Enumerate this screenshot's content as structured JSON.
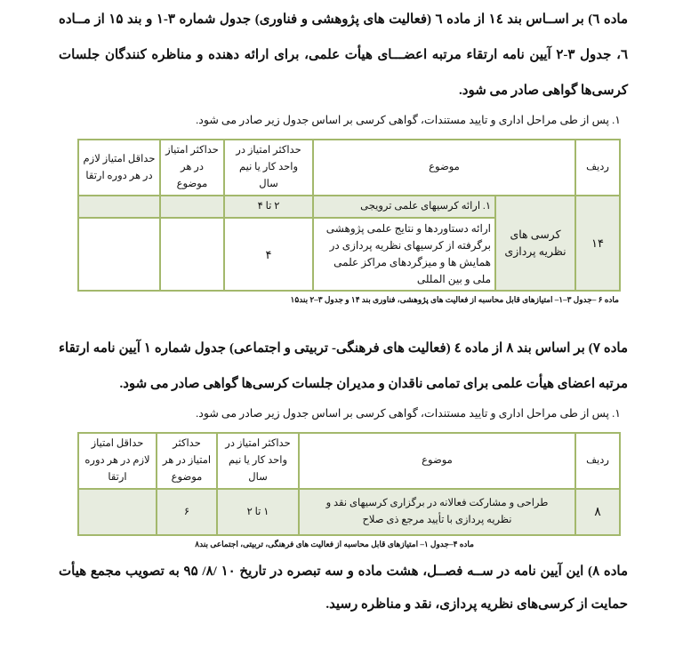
{
  "article6": {
    "paragraph": "ماده ٦) بر اســاس بند ١٤ از ماده ٦ (فعالیت های پژوهشی و فناوری) جدول شماره ۳-۱ و بند ۱۵ از مــاده ٦، جدول ۳-۲ آیین نامه ارتقاء مرتبه اعضـــای هیأت علمی، برای ارائه دهنده و مناظره کنندگان جلسات کرسی‌ها گواهی صادر می شود.",
    "item": "۱.   پس از طی مراحل اداری و تایید مستندات، گواهی کرسی بر اساس جدول زیر صادر می شود.",
    "table": {
      "headers": [
        "ردیف",
        "موضوع",
        "حداکثر امتیاز در واحد کار یا نیم سال",
        "حداکثر  امتیاز در هر موضوع",
        "حداقل امتیاز لازم در هر دوره ارتقا"
      ],
      "row_number": "۱۴",
      "category": "کرسی   های نظریه پردازی",
      "rows": [
        {
          "topic": "۱. ارائه کرسیهای علمی  ترویجی",
          "max_unit": "۲ تا ۴",
          "max_topic": "",
          "min_required": ""
        },
        {
          "topic": "ارائه دستاوردها و نتایج علمی پژوهشی برگرفته از کرسیهای نظریه پردازی در همایش ها و میزگردهای مراکز علمی ملی و بین المللی",
          "max_unit": "۴",
          "max_topic": "",
          "min_required": ""
        }
      ],
      "caption": "ماده ۶ –جدول ۳–۱– امتیازهای قابل محاسبه از فعالیت های پژوهشی، فناوری بند ۱۴ و جدول ۳–۲ بند۱۵"
    }
  },
  "article7": {
    "paragraph": "ماده ۷)  بر اساس بند ۸ از ماده ٤ (فعالیت های فرهنگی- تربیتی و اجتماعی) جدول شماره ۱ آیین نامه ارتقاء مرتبه اعضای هیأت علمی برای تمامی ناقدان و مدیران جلسات کرسی‌ها گواهی صادر می شود.",
    "item": "۱.   پس از طی مراحل اداری و تایید مستندات، گواهی کرسی بر اساس جدول زیر صادر می شود.",
    "table": {
      "headers": [
        "ردیف",
        "موضوع",
        "حداکثر امتیاز در واحد کار یا نیم سال",
        "حداکثر امتیاز در هر موضوع",
        "حداقل امتیاز لازم در هر دوره ارتقا"
      ],
      "row": {
        "number": "۸",
        "topic": "طراحی و مشارکت فعالانه در برگزاری کرسیهای نقد و نظریه پردازی با تأیید مرجع ذی صلاح",
        "max_unit": "۱ تا ۲",
        "max_topic": "۶",
        "min_required": ""
      },
      "caption": "ماده ۴–جدول ۱– امتیازهای قابل محاسبه از فعالیت های فرهنگی، تربیتی، اجتماعی بند۸"
    }
  },
  "article8": {
    "paragraph": "ماده ۸)  این آیین نامه در ســه فصــل، هشت ماده و سه تبصره در تاریخ ۱۰ /۸/ ۹۵ به تصویب مجمع هیأت حمایت از کرسی‌های نظریه پردازی، نقد و مناظره رسید."
  },
  "colors": {
    "table_border": "#a3b86c",
    "shaded_row": "#e7ecdf"
  }
}
